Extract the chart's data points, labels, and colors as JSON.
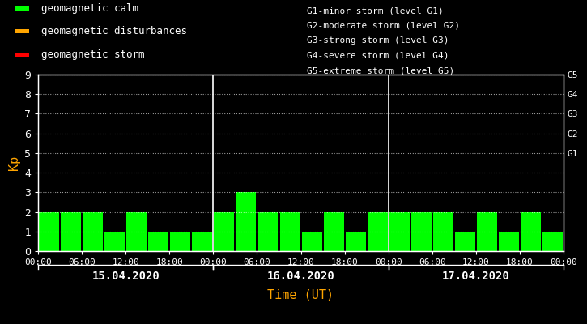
{
  "background_color": "#000000",
  "plot_bg_color": "#000000",
  "bar_color_calm": "#00ff00",
  "bar_color_disturbance": "#ffa500",
  "bar_color_storm": "#ff0000",
  "kp_values": [
    2,
    2,
    2,
    1,
    2,
    1,
    1,
    1,
    2,
    3,
    2,
    2,
    1,
    2,
    1,
    2,
    2,
    2,
    2,
    1,
    2,
    1,
    2,
    1
  ],
  "days": [
    "15.04.2020",
    "16.04.2020",
    "17.04.2020"
  ],
  "ylabel": "Kp",
  "xlabel": "Time (UT)",
  "ylim": [
    0,
    9
  ],
  "yticks": [
    0,
    1,
    2,
    3,
    4,
    5,
    6,
    7,
    8,
    9
  ],
  "g_labels": [
    "G5",
    "G4",
    "G3",
    "G2",
    "G1"
  ],
  "g_positions": [
    9,
    8,
    7,
    6,
    5
  ],
  "legend_calm": "geomagnetic calm",
  "legend_disturbance": "geomagnetic disturbances",
  "legend_storm": "geomagnetic storm",
  "storm_legend_lines": [
    "G1-minor storm (level G1)",
    "G2-moderate storm (level G2)",
    "G3-strong storm (level G3)",
    "G4-severe storm (level G4)",
    "G5-extreme storm (level G5)"
  ],
  "text_color": "#ffffff",
  "label_color_orange": "#ffa500",
  "bar_width": 0.92
}
